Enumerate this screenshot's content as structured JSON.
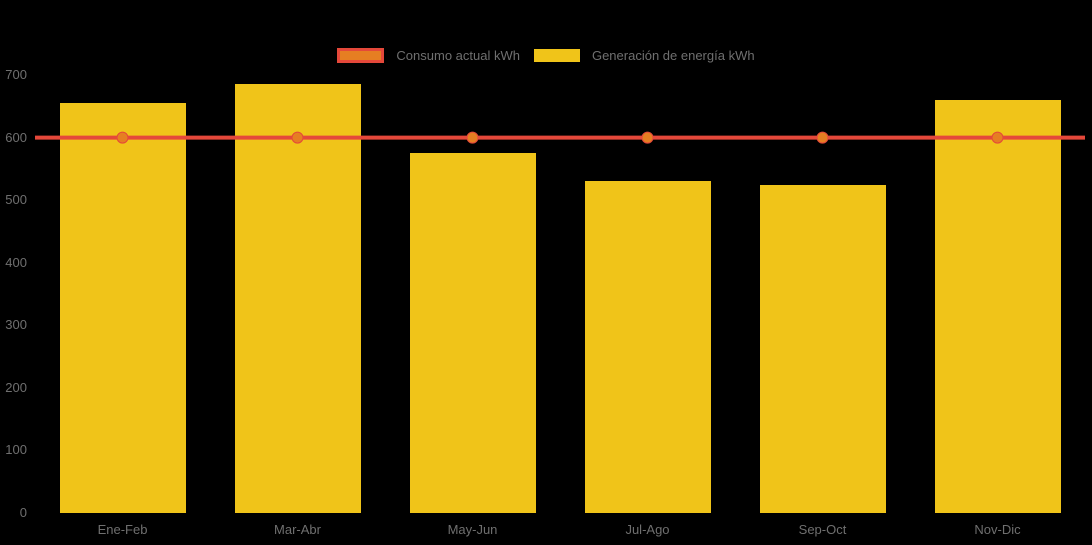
{
  "chart_data": {
    "type": "bar",
    "title": "",
    "categories": [
      "Ene-Feb",
      "Mar-Abr",
      "May-Jun",
      "Jul-Ago",
      "Sep-Oct",
      "Nov-Dic"
    ],
    "series": [
      {
        "name": "Consumo actual kWh",
        "type": "line",
        "color": "#E5483A",
        "marker_color": "#E67E22",
        "values": [
          600,
          600,
          600,
          600,
          600,
          600
        ]
      },
      {
        "name": "Generación de energía kWh",
        "type": "bar",
        "color": "#F0C419",
        "values": [
          655,
          685,
          575,
          530,
          525,
          660
        ]
      }
    ],
    "xlabel": "",
    "ylabel": "",
    "ylim": [
      0,
      700
    ],
    "yticks": [
      0,
      100,
      200,
      300,
      400,
      500,
      600,
      700
    ],
    "grid": false,
    "legend_position": "top",
    "background_color": "#000000",
    "text_color": "#6F6F6F"
  }
}
